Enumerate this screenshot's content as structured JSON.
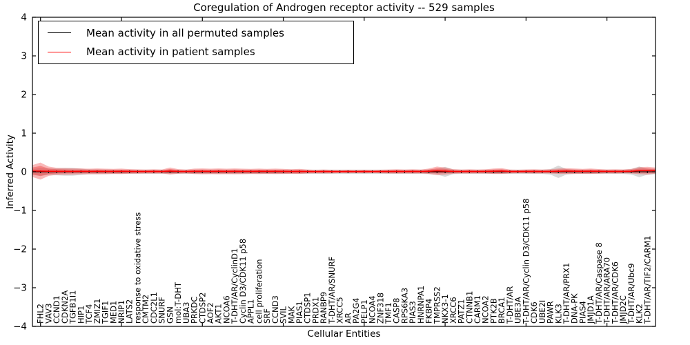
{
  "chart_data": {
    "type": "line",
    "title": "Coregulation of Androgen receptor activity -- 529 samples",
    "xlabel": "Cellular Entities",
    "ylabel": "Inferred Activity",
    "ylim": [
      -4,
      4
    ],
    "yticks": [
      4,
      3,
      2,
      1,
      0,
      -1,
      -2,
      -3,
      -4
    ],
    "x_major_tick_every": 10,
    "grid": false,
    "legend_position": "upper left",
    "categories": [
      "FHL2",
      "VAV3",
      "CCND1",
      "CDKN2A",
      "TGFB1I1",
      "HIP1",
      "TCF4",
      "ZMIZ1",
      "TGIF1",
      "MED1",
      "NRIP1",
      "LATS2",
      "response to oxidative stress",
      "CMTM2",
      "CDC2L1",
      "SNURF",
      "GSN",
      "mol:T-DHT",
      "UBA3",
      "PRKDC",
      "CTDSP2",
      "AOF2",
      "AKT1",
      "NCOA6",
      "T-DHT/AR/CyclinD1",
      "Cyclin D3/CDK11 p58",
      "APPL1",
      "cell proliferation",
      "SRF",
      "CCND3",
      "SVIL",
      "MAK",
      "PIAS1",
      "CTDSP1",
      "PRDX1",
      "RANBP9",
      "T-DHT/AR/SNURF",
      "XRCC5",
      "AR",
      "PA2G4",
      "PELP1",
      "NCOA4",
      "ZNF318",
      "TMF1",
      "CASP8",
      "RPS6KA3",
      "PIAS3",
      "HNRNPA1",
      "FKBP4",
      "TMPRSS2",
      "NKX3-1",
      "XRCC6",
      "PATZ1",
      "CTNNB1",
      "CARM1",
      "NCOA2",
      "PTK2B",
      "BRCA1",
      "T-DHT/AR",
      "UBE3A",
      "T-DHT/AR/Cyclin D3/CDK11 p58",
      "CDK6",
      "UBE2I",
      "PAWR",
      "KLK3",
      "T-DHT/AR/PRX1",
      "DNA-PK",
      "PIAS4",
      "JMJD1A",
      "T-DHT/AR/Caspase 8",
      "T-DHT/AR/ARA70",
      "T-DHT/AR/CDK6",
      "JMJD2C",
      "T-DHT/AR/Ubc9",
      "KLK2",
      "T-DHT/AR/TIF2/CARM1"
    ],
    "series": [
      {
        "name": "Mean activity in all permuted samples",
        "color": "#000000",
        "marker": "|",
        "mean_constant": 0,
        "band_color": "#808080",
        "band_opacity": 0.3,
        "spread": [
          0.1,
          0.08,
          0.09,
          0.1,
          0.1,
          0.08,
          0.065,
          0.06,
          0.06,
          0.055,
          0.055,
          0.055,
          0.055,
          0.055,
          0.055,
          0.055,
          0.055,
          0.055,
          0.055,
          0.055,
          0.055,
          0.055,
          0.055,
          0.055,
          0.055,
          0.055,
          0.055,
          0.055,
          0.055,
          0.055,
          0.055,
          0.055,
          0.055,
          0.055,
          0.055,
          0.055,
          0.055,
          0.055,
          0.055,
          0.055,
          0.055,
          0.055,
          0.055,
          0.055,
          0.055,
          0.055,
          0.055,
          0.055,
          0.06,
          0.07,
          0.13,
          0.06,
          0.055,
          0.055,
          0.055,
          0.055,
          0.055,
          0.055,
          0.055,
          0.055,
          0.055,
          0.055,
          0.055,
          0.07,
          0.16,
          0.07,
          0.055,
          0.055,
          0.055,
          0.055,
          0.055,
          0.055,
          0.055,
          0.07,
          0.14,
          0.075
        ]
      },
      {
        "name": "Mean activity in patient samples",
        "color": "#ff0000",
        "band_color": "#ee3333",
        "band_opacity_outer": 0.35,
        "band_opacity_inner": 0.4,
        "mean_values": [
          0.02,
          0.015,
          0.012,
          0.012,
          0.01,
          0.012,
          0.01,
          0.012,
          0.01,
          0.01,
          0.012,
          0.01,
          0.008,
          0.008,
          0.01,
          0.008,
          0.02,
          0.01,
          0.008,
          0.012,
          0.012,
          0.01,
          0.012,
          0.01,
          0.012,
          0.01,
          0.01,
          0.012,
          0.01,
          0.012,
          0.01,
          0.008,
          0.01,
          0.008,
          0.006,
          0.008,
          0.006,
          0.006,
          0.008,
          0.006,
          0.008,
          0.006,
          0.008,
          0.008,
          0.01,
          0.008,
          0.01,
          0.008,
          0.015,
          0.025,
          0.02,
          0.01,
          0.008,
          0.01,
          0.008,
          0.01,
          0.015,
          0.02,
          0.008,
          0.008,
          0.01,
          0.01,
          0.008,
          0.01,
          0.015,
          0.02,
          0.015,
          0.012,
          0.015,
          0.012,
          0.01,
          0.01,
          0.01,
          0.015,
          0.03,
          0.03
        ],
        "spread_outer": [
          0.22,
          0.12,
          0.09,
          0.085,
          0.08,
          0.075,
          0.07,
          0.075,
          0.07,
          0.065,
          0.07,
          0.06,
          0.055,
          0.05,
          0.055,
          0.05,
          0.09,
          0.06,
          0.05,
          0.07,
          0.075,
          0.07,
          0.075,
          0.07,
          0.075,
          0.07,
          0.065,
          0.07,
          0.065,
          0.07,
          0.065,
          0.06,
          0.065,
          0.05,
          0.045,
          0.05,
          0.045,
          0.04,
          0.045,
          0.04,
          0.045,
          0.04,
          0.045,
          0.05,
          0.055,
          0.05,
          0.055,
          0.05,
          0.07,
          0.11,
          0.09,
          0.06,
          0.05,
          0.055,
          0.05,
          0.055,
          0.07,
          0.075,
          0.05,
          0.045,
          0.05,
          0.055,
          0.05,
          0.055,
          0.07,
          0.075,
          0.07,
          0.065,
          0.07,
          0.06,
          0.05,
          0.055,
          0.05,
          0.06,
          0.09,
          0.1
        ],
        "spread_inner": [
          0.132,
          0.072,
          0.054,
          0.051,
          0.048,
          0.045,
          0.042,
          0.045,
          0.042,
          0.039,
          0.042,
          0.036,
          0.033,
          0.03,
          0.033,
          0.03,
          0.054,
          0.036,
          0.03,
          0.042,
          0.045,
          0.042,
          0.045,
          0.042,
          0.045,
          0.042,
          0.039,
          0.042,
          0.039,
          0.042,
          0.039,
          0.036,
          0.039,
          0.03,
          0.027,
          0.03,
          0.027,
          0.024,
          0.027,
          0.024,
          0.027,
          0.024,
          0.027,
          0.03,
          0.033,
          0.03,
          0.033,
          0.03,
          0.042,
          0.066,
          0.054,
          0.036,
          0.03,
          0.033,
          0.03,
          0.033,
          0.042,
          0.045,
          0.03,
          0.027,
          0.03,
          0.033,
          0.03,
          0.033,
          0.042,
          0.045,
          0.042,
          0.039,
          0.042,
          0.036,
          0.03,
          0.033,
          0.03,
          0.036,
          0.054,
          0.06
        ]
      }
    ]
  }
}
